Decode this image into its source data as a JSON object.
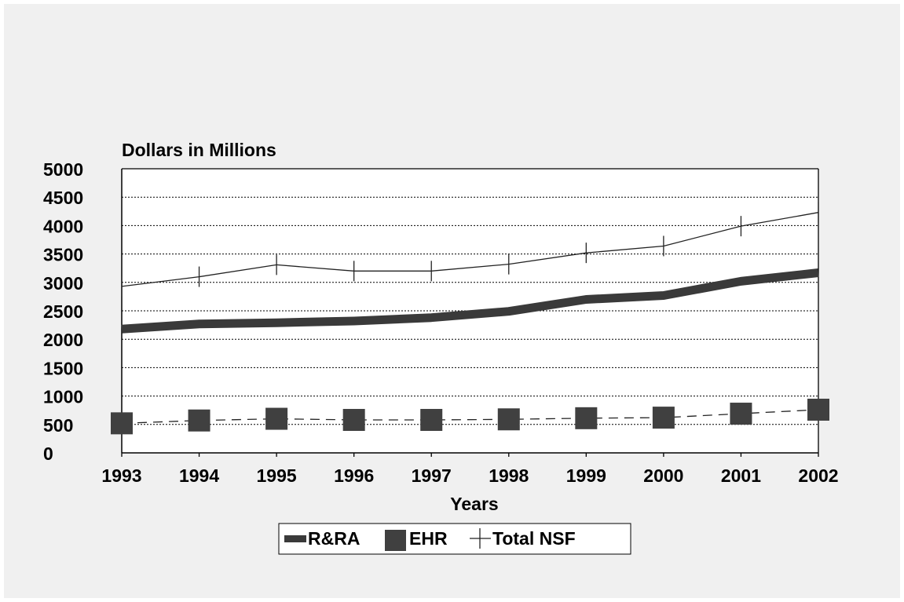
{
  "chart_data": {
    "type": "line",
    "title": "",
    "ylabel": "Dollars in Millions",
    "xlabel": "Years",
    "categories": [
      "1993",
      "1994",
      "1995",
      "1996",
      "1997",
      "1998",
      "1999",
      "2000",
      "2001",
      "2002"
    ],
    "y_ticks": [
      "0",
      "500",
      "1000",
      "1500",
      "2000",
      "2500",
      "3000",
      "3500",
      "4000",
      "4500",
      "5000"
    ],
    "ylim": [
      0,
      5000
    ],
    "grid": true,
    "legend_position": "bottom",
    "series": [
      {
        "name": "R&RA",
        "values": [
          2180,
          2270,
          2290,
          2320,
          2380,
          2490,
          2700,
          2770,
          3020,
          3170
        ],
        "color": "#3a3a3a",
        "style": "thick-solid"
      },
      {
        "name": "EHR",
        "values": [
          520,
          570,
          600,
          580,
          580,
          590,
          610,
          620,
          690,
          760
        ],
        "color": "#404040",
        "style": "dashed-square-markers"
      },
      {
        "name": "Total NSF",
        "values": [
          2930,
          3100,
          3310,
          3200,
          3200,
          3320,
          3520,
          3640,
          3990,
          4230
        ],
        "color": "#222222",
        "style": "thin-plus-markers"
      }
    ]
  }
}
